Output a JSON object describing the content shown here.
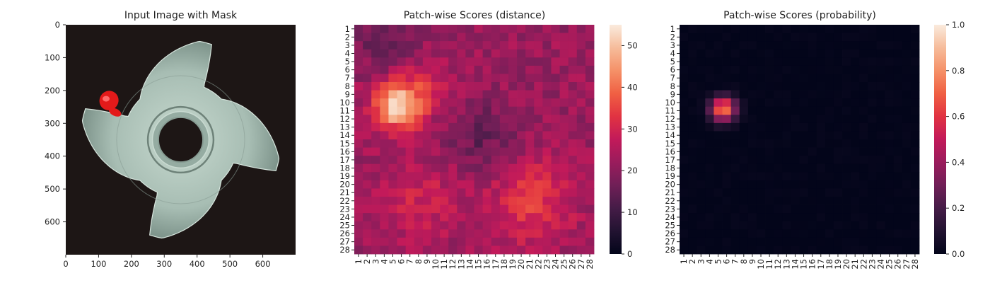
{
  "chart_data": [
    {
      "type": "image",
      "title": "Input Image with Mask",
      "xlabel": "",
      "ylabel": "",
      "xlim": [
        0,
        700
      ],
      "ylim": [
        700,
        0
      ],
      "xticks": [
        "0",
        "100",
        "200",
        "300",
        "400",
        "500",
        "600"
      ],
      "yticks": [
        "0",
        "100",
        "200",
        "300",
        "400",
        "500",
        "600"
      ],
      "content": {
        "object": "metal-part-with-four-lobes-and-central-hole",
        "background_color": "#1d1615",
        "part_color": "#a9bfb5",
        "mask_color": "#e31a1a",
        "center": [
          350,
          350
        ],
        "hole_radius": 68,
        "inner_ring_radius": 100,
        "body_radius": 175,
        "lobe_tip_radius": 305,
        "mask_region": {
          "x": [
            95,
            185
          ],
          "y": [
            205,
            280
          ]
        }
      }
    },
    {
      "type": "heatmap",
      "title": "Patch-wise Scores (distance)",
      "xlabel": "",
      "ylabel": "",
      "rows": 28,
      "cols": 28,
      "row_labels": [
        "1",
        "2",
        "3",
        "4",
        "5",
        "6",
        "7",
        "8",
        "9",
        "10",
        "11",
        "12",
        "13",
        "14",
        "15",
        "16",
        "17",
        "18",
        "19",
        "20",
        "21",
        "22",
        "23",
        "24",
        "25",
        "26",
        "27",
        "28"
      ],
      "col_labels": [
        "1",
        "2",
        "3",
        "4",
        "5",
        "6",
        "7",
        "8",
        "9",
        "10",
        "11",
        "12",
        "13",
        "14",
        "15",
        "16",
        "17",
        "18",
        "19",
        "20",
        "21",
        "22",
        "23",
        "24",
        "25",
        "26",
        "27",
        "28"
      ],
      "colormap": "rocket",
      "colorbar": {
        "min": 0,
        "max": 55,
        "ticks": [
          "0",
          "10",
          "20",
          "30",
          "40",
          "50"
        ]
      },
      "field": {
        "base": 22,
        "hotspots": [
          {
            "row": 10.5,
            "col": 5.5,
            "amp": 30,
            "sigma": 1.9
          },
          {
            "row": 8.5,
            "col": 8.5,
            "amp": 8,
            "sigma": 2.5
          },
          {
            "row": 22,
            "col": 8,
            "amp": 7,
            "sigma": 3.5
          },
          {
            "row": 23.5,
            "col": 21,
            "amp": 8,
            "sigma": 3.5
          },
          {
            "row": 20,
            "col": 22,
            "amp": 5,
            "sigma": 3
          },
          {
            "row": 14,
            "col": 15,
            "amp": -7,
            "sigma": 3
          },
          {
            "row": 2,
            "col": 4,
            "amp": -6,
            "sigma": 3
          }
        ],
        "noise": 4,
        "seed": 17
      }
    },
    {
      "type": "heatmap",
      "title": "Patch-wise Scores (probability)",
      "xlabel": "",
      "ylabel": "",
      "rows": 28,
      "cols": 28,
      "row_labels": [
        "1",
        "2",
        "3",
        "4",
        "5",
        "6",
        "7",
        "8",
        "9",
        "10",
        "11",
        "12",
        "13",
        "14",
        "15",
        "16",
        "17",
        "18",
        "19",
        "20",
        "21",
        "22",
        "23",
        "24",
        "25",
        "26",
        "27",
        "28"
      ],
      "col_labels": [
        "1",
        "2",
        "3",
        "4",
        "5",
        "6",
        "7",
        "8",
        "9",
        "10",
        "11",
        "12",
        "13",
        "14",
        "15",
        "16",
        "17",
        "18",
        "19",
        "20",
        "21",
        "22",
        "23",
        "24",
        "25",
        "26",
        "27",
        "28"
      ],
      "colormap": "rocket",
      "colorbar": {
        "min": 0,
        "max": 1.0,
        "ticks": [
          "0.0",
          "0.2",
          "0.4",
          "0.6",
          "0.8",
          "1.0"
        ]
      },
      "field": {
        "base": 0.0,
        "hotspots": [
          {
            "row": 10.8,
            "col": 5.6,
            "amp": 0.78,
            "sigma": 1.05
          }
        ],
        "noise": 0.015,
        "seed": 29
      }
    }
  ]
}
